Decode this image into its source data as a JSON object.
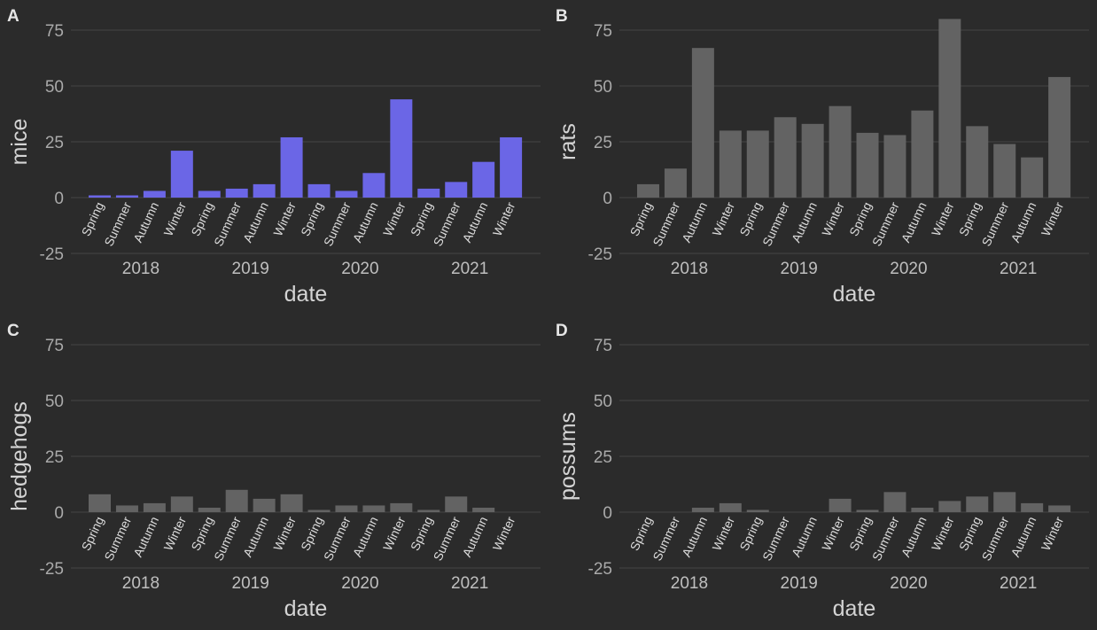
{
  "colors": {
    "background": "#2b2b2b",
    "highlight_bar": "#6b66e6",
    "default_bar": "#636363",
    "grid": "#454545"
  },
  "chart_data": [
    {
      "tag": "A",
      "type": "bar",
      "ylabel": "mice",
      "xlabel": "date",
      "highlight": true,
      "ylim": [
        -25,
        75
      ],
      "yticks": [
        "-25",
        "0",
        "25",
        "50",
        "75"
      ],
      "years": [
        "2018",
        "2019",
        "2020",
        "2021"
      ],
      "seasons": [
        "Spring",
        "Summer",
        "Autumn",
        "Winter"
      ],
      "values": [
        1,
        1,
        3,
        21,
        3,
        4,
        6,
        27,
        6,
        3,
        11,
        44,
        4,
        7,
        16,
        27
      ]
    },
    {
      "tag": "B",
      "type": "bar",
      "ylabel": "rats",
      "xlabel": "date",
      "highlight": false,
      "ylim": [
        -25,
        75
      ],
      "yticks": [
        "-25",
        "0",
        "25",
        "50",
        "75"
      ],
      "years": [
        "2018",
        "2019",
        "2020",
        "2021"
      ],
      "seasons": [
        "Spring",
        "Summer",
        "Autumn",
        "Winter"
      ],
      "values": [
        6,
        13,
        67,
        30,
        30,
        36,
        33,
        41,
        29,
        28,
        39,
        80,
        32,
        24,
        18,
        54
      ]
    },
    {
      "tag": "C",
      "type": "bar",
      "ylabel": "hedgehogs",
      "xlabel": "date",
      "highlight": false,
      "ylim": [
        -25,
        75
      ],
      "yticks": [
        "-25",
        "0",
        "25",
        "50",
        "75"
      ],
      "years": [
        "2018",
        "2019",
        "2020",
        "2021"
      ],
      "seasons": [
        "Spring",
        "Summer",
        "Autumn",
        "Winter"
      ],
      "values": [
        8,
        3,
        4,
        7,
        2,
        10,
        6,
        8,
        1,
        3,
        3,
        4,
        1,
        7,
        2,
        0
      ]
    },
    {
      "tag": "D",
      "type": "bar",
      "ylabel": "possums",
      "xlabel": "date",
      "highlight": false,
      "ylim": [
        -25,
        75
      ],
      "yticks": [
        "-25",
        "0",
        "25",
        "50",
        "75"
      ],
      "years": [
        "2018",
        "2019",
        "2020",
        "2021"
      ],
      "seasons": [
        "Spring",
        "Summer",
        "Autumn",
        "Winter"
      ],
      "values": [
        0,
        0,
        2,
        4,
        1,
        0,
        0,
        6,
        1,
        9,
        2,
        5,
        7,
        9,
        4,
        3
      ]
    }
  ]
}
